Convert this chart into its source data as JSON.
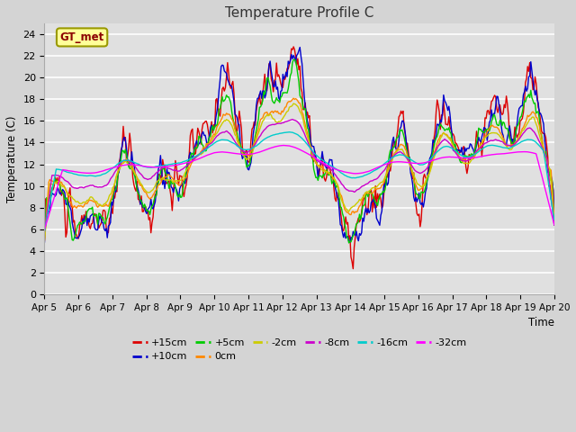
{
  "title": "Temperature Profile C",
  "xlabel": "Time",
  "ylabel": "Temperature (C)",
  "ylim": [
    0,
    25
  ],
  "yticks": [
    0,
    2,
    4,
    6,
    8,
    10,
    12,
    14,
    16,
    18,
    20,
    22,
    24
  ],
  "xtick_labels": [
    "Apr 5",
    "Apr 6",
    "Apr 7",
    "Apr 8",
    "Apr 9",
    "Apr 10",
    "Apr 11",
    "Apr 12",
    "Apr 13",
    "Apr 14",
    "Apr 15",
    "Apr 16",
    "Apr 17",
    "Apr 18",
    "Apr 19",
    "Apr 20"
  ],
  "series_labels": [
    "+15cm",
    "+10cm",
    "+5cm",
    "0cm",
    "-2cm",
    "-8cm",
    "-16cm",
    "-32cm"
  ],
  "series_colors": [
    "#dd0000",
    "#0000cc",
    "#00cc00",
    "#ff8800",
    "#cccc00",
    "#cc00cc",
    "#00cccc",
    "#ff00ff"
  ],
  "series_lw": [
    1.0,
    1.0,
    1.0,
    1.0,
    1.0,
    1.0,
    1.0,
    1.0
  ],
  "bg_color": "#d8d8d8",
  "plot_bg_color": "#e0e0e0",
  "annotation_text": "GT_met",
  "annotation_bg": "#ffff99",
  "annotation_border": "#999900",
  "title_fontsize": 11,
  "n_points": 480,
  "legend_ncol_row1": 6,
  "legend_ncol_row2": 2
}
